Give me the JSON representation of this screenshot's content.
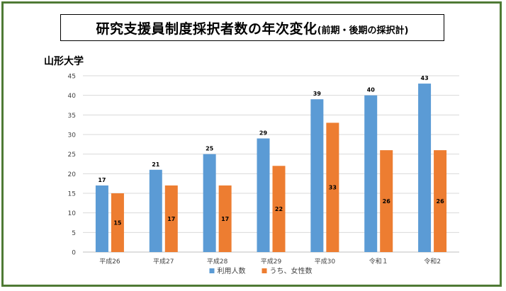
{
  "title": "研究支援員制度採択者数の年次変化",
  "title_suffix": "(前期・後期の採択計)",
  "university": "山形大学",
  "colors": {
    "series1": "#5b9bd5",
    "series2": "#ed7d31",
    "frame": "#4f7a35",
    "grid": "#d9d9d9"
  },
  "chart_data": {
    "type": "bar",
    "categories": [
      "平成26",
      "平成27",
      "平成28",
      "平成29",
      "平成30",
      "令和１",
      "令和2"
    ],
    "series": [
      {
        "name": "利用人数",
        "values": [
          17,
          21,
          25,
          29,
          39,
          40,
          43
        ]
      },
      {
        "name": "うち、女性数",
        "values": [
          15,
          17,
          17,
          22,
          33,
          26,
          26
        ]
      }
    ],
    "ylim": [
      0,
      45
    ],
    "yticks": [
      0,
      5,
      10,
      15,
      20,
      25,
      30,
      35,
      40,
      45
    ],
    "grid": true,
    "legend": "bottom"
  }
}
